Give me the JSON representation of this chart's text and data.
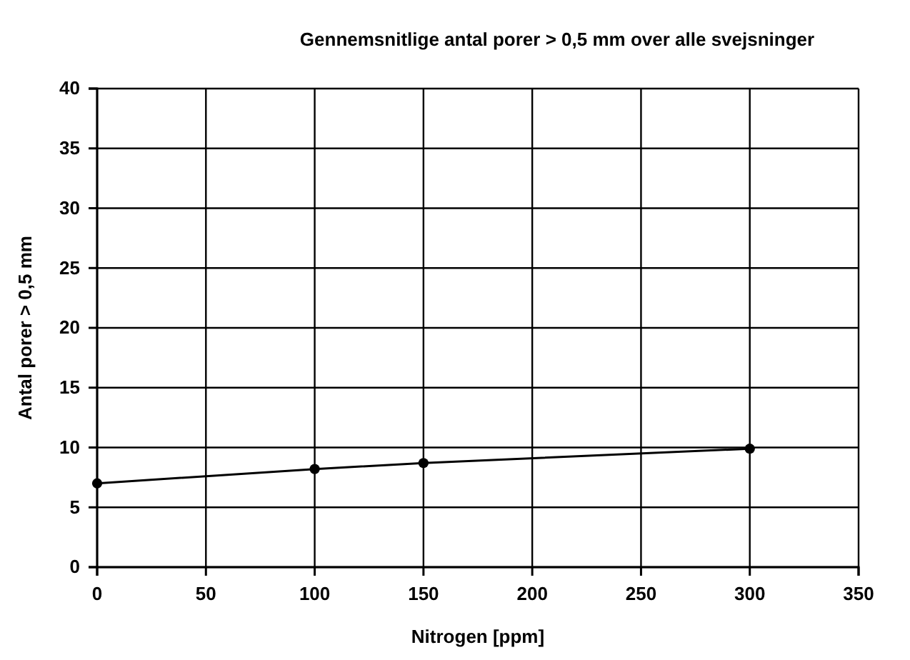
{
  "chart_data": {
    "type": "line",
    "title": "Gennemsnitlige antal porer > 0,5 mm over alle svejsninger",
    "xlabel": "Nitrogen [ppm]",
    "ylabel": "Antal porer > 0,5 mm",
    "x": [
      0,
      100,
      150,
      300
    ],
    "series": [
      {
        "color": "#000000",
        "values": [
          7.0,
          8.2,
          8.7,
          9.9
        ]
      }
    ],
    "xlim": [
      0,
      350
    ],
    "xticks": [
      0,
      50,
      100,
      150,
      200,
      250,
      300,
      350
    ],
    "ylim": [
      0,
      40
    ],
    "yticks": [
      0,
      5,
      10,
      15,
      20,
      25,
      30,
      35,
      40
    ],
    "grid": true,
    "marker": "circle",
    "line_style": "solid"
  }
}
